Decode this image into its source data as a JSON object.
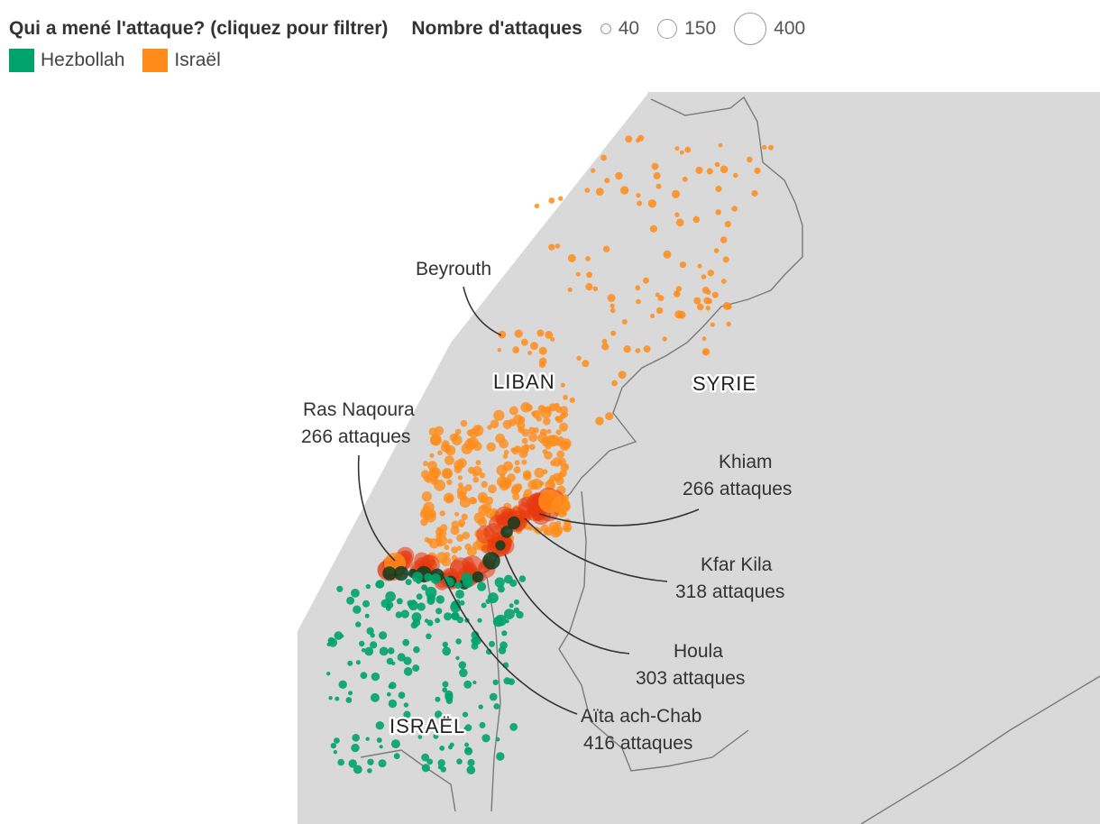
{
  "legend": {
    "filter_title": "Qui a mené l'attaque? (cliquez pour filtrer)",
    "groups": [
      {
        "label": "Hezbollah",
        "color": "#00a36c"
      },
      {
        "label": "Israël",
        "color": "#ff8c1a"
      }
    ],
    "size_title": "Nombre d'attaques",
    "sizes": [
      "40",
      "150",
      "400"
    ]
  },
  "map": {
    "land_color": "#d9d9d9",
    "border_color": "#7a7a7a",
    "hotspot_color": "#e8380e",
    "hezbollah_dark_color": "#0b3d1f",
    "countries": {
      "lebanon": "LIBAN",
      "syria": "SYRIE",
      "israel": "ISRAËL"
    },
    "annotations": [
      {
        "name": "Beyrouth",
        "line2": ""
      },
      {
        "name": "Ras Naqoura",
        "line2": "266 attaques",
        "count": 266
      },
      {
        "name": "Khiam",
        "line2": "266 attaques",
        "count": 266
      },
      {
        "name": "Kfar Kila",
        "line2": "318 attaques",
        "count": 318
      },
      {
        "name": "Houla",
        "line2": "303 attaques",
        "count": 303
      },
      {
        "name": "Aïta ach-Chab",
        "line2": "416 attaques",
        "count": 416
      }
    ]
  }
}
